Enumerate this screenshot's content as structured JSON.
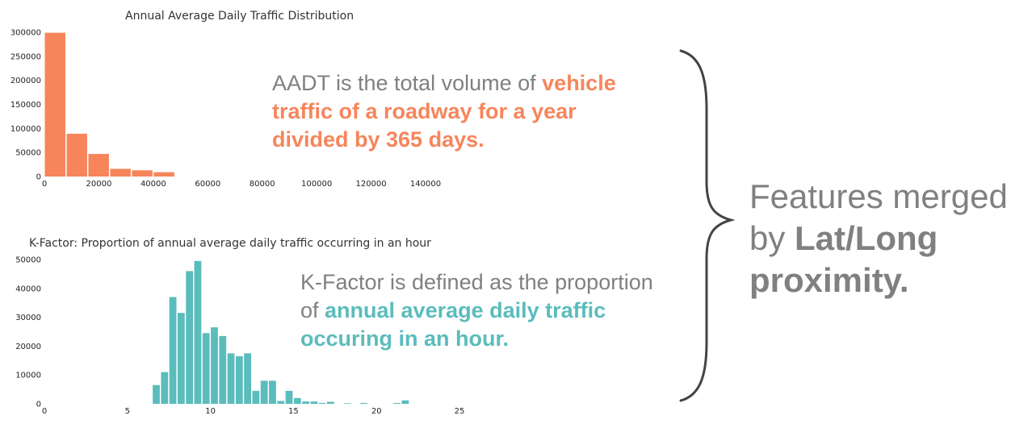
{
  "chart_data": [
    {
      "type": "bar",
      "title": "Annual Average Daily Traffic Distribution",
      "xlabel": "",
      "ylabel": "",
      "xlim": [
        0,
        140000
      ],
      "ylim": [
        0,
        300000
      ],
      "x_ticks": [
        "0",
        "20000",
        "40000",
        "60000",
        "80000",
        "100000",
        "120000",
        "140000"
      ],
      "y_ticks": [
        "0",
        "50000",
        "100000",
        "150000",
        "200000",
        "250000",
        "300000"
      ],
      "bin_edges": [
        0,
        8000,
        16000,
        24000,
        32000,
        40000,
        48000
      ],
      "values": [
        299000,
        89000,
        47000,
        16000,
        13000,
        9000
      ],
      "color": "#f7855c",
      "grid": false
    },
    {
      "type": "bar",
      "title": "K-Factor: Proportion of annual average daily traffic occurring in an hour",
      "xlabel": "",
      "ylabel": "",
      "xlim": [
        0,
        25
      ],
      "ylim": [
        0,
        50000
      ],
      "x_ticks": [
        "0",
        "5",
        "10",
        "15",
        "20",
        "25"
      ],
      "y_ticks": [
        "0",
        "10000",
        "20000",
        "30000",
        "40000",
        "50000"
      ],
      "bin_width": 0.5,
      "bins": [
        {
          "x": 6.5,
          "v": 6500
        },
        {
          "x": 7.0,
          "v": 11000
        },
        {
          "x": 7.5,
          "v": 37000
        },
        {
          "x": 8.0,
          "v": 31500
        },
        {
          "x": 8.5,
          "v": 46000
        },
        {
          "x": 9.0,
          "v": 49500
        },
        {
          "x": 9.5,
          "v": 24500
        },
        {
          "x": 10.0,
          "v": 26500
        },
        {
          "x": 10.5,
          "v": 23500
        },
        {
          "x": 11.0,
          "v": 17500
        },
        {
          "x": 11.5,
          "v": 16500
        },
        {
          "x": 12.0,
          "v": 17500
        },
        {
          "x": 12.5,
          "v": 4500
        },
        {
          "x": 13.0,
          "v": 8000
        },
        {
          "x": 13.5,
          "v": 8000
        },
        {
          "x": 14.0,
          "v": 1000
        },
        {
          "x": 14.5,
          "v": 4500
        },
        {
          "x": 15.0,
          "v": 2000
        },
        {
          "x": 15.5,
          "v": 800
        },
        {
          "x": 16.0,
          "v": 800
        },
        {
          "x": 16.5,
          "v": 300
        },
        {
          "x": 17.0,
          "v": 700
        },
        {
          "x": 18.0,
          "v": 200
        },
        {
          "x": 19.0,
          "v": 300
        },
        {
          "x": 21.0,
          "v": 300
        },
        {
          "x": 21.5,
          "v": 1200
        }
      ],
      "color": "#5bbcbc",
      "grid": false
    }
  ],
  "aadt_text": {
    "plain": "AADT is the total volume of ",
    "hl_1": "vehicle",
    "hl_2": "traffic of a roadway for a year",
    "hl_3": "divided by 365 days.",
    "color": "#f7855c"
  },
  "kfactor_text": {
    "plain_1": "K-Factor is defined as the proportion",
    "plain_2": "of ",
    "hl_1": "annual average daily traffic",
    "hl_2": "occuring in an hour.",
    "color": "#5bbcbc"
  },
  "features_text": {
    "line_1": "Features merged",
    "line_2_plain": "by ",
    "line_2_bold": "Lat/Long",
    "line_3_bold": "proximity."
  },
  "colors": {
    "text_gray": "#808080",
    "orange": "#f7855c",
    "teal": "#5bbcbc",
    "brace": "#444444"
  }
}
